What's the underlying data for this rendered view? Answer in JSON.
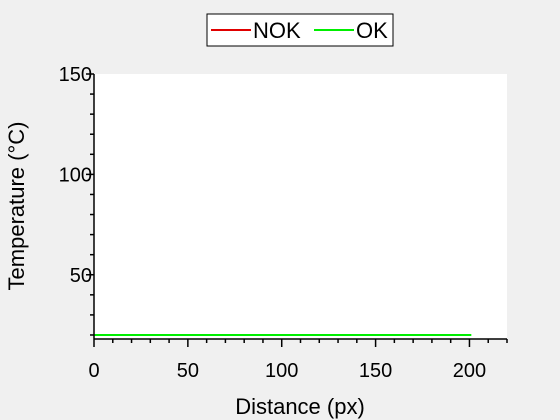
{
  "chart_data": {
    "type": "line",
    "title": "",
    "xlabel": "Distance (px)",
    "ylabel": "Temperature (°C)",
    "xlim": [
      0,
      220
    ],
    "ylim": [
      18,
      150
    ],
    "xticks": [
      0,
      50,
      100,
      150,
      200
    ],
    "yticks": [
      50,
      100,
      150
    ],
    "grid": false,
    "legend_position": "top-center",
    "series": [
      {
        "name": "NOK",
        "color": "#e00000",
        "x": [],
        "y": []
      },
      {
        "name": "OK",
        "color": "#00ee00",
        "x": [
          0,
          201
        ],
        "y": [
          20,
          20
        ]
      }
    ]
  }
}
